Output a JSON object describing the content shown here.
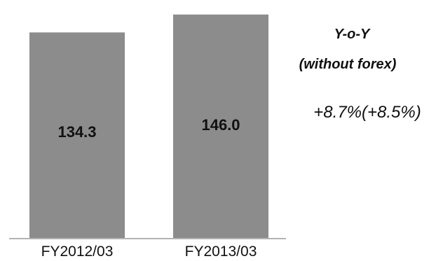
{
  "chart_data": {
    "type": "bar",
    "categories": [
      "FY2012/03",
      "FY2013/03"
    ],
    "values": [
      134.3,
      146.0
    ],
    "value_labels": [
      "134.3",
      "146.0"
    ],
    "ylim": [
      0,
      150
    ],
    "grid": false,
    "bar_color": "#8c8c8c",
    "annotation": {
      "title_line1": "Y-o-Y",
      "title_line2": "(without forex)",
      "value": "+8.7%(+8.5%)"
    }
  }
}
